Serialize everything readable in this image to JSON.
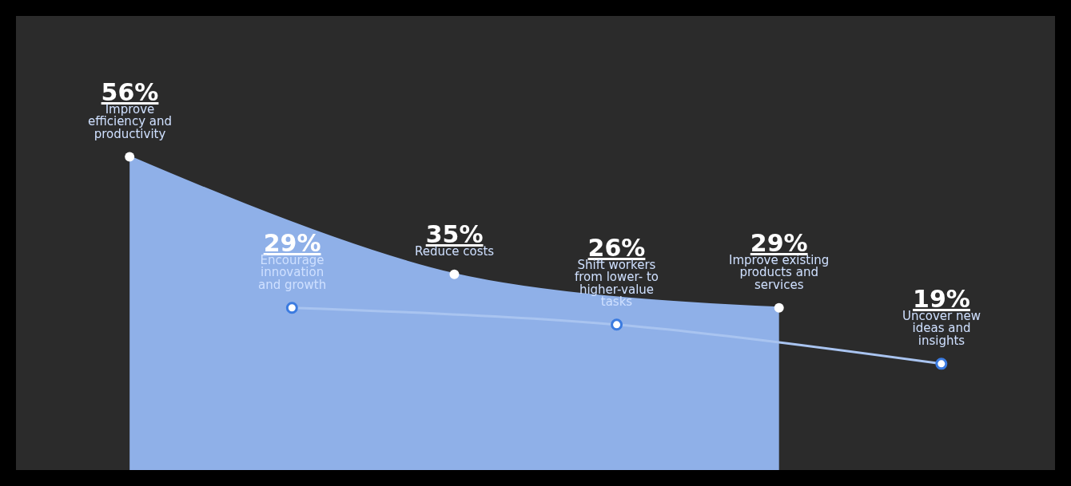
{
  "chart_data": {
    "type": "area",
    "categories": [
      "Improve\nefficiency and\nproductivity",
      "Encourage\ninnovation\nand growth",
      "Reduce costs",
      "Shift workers\nfrom lower- to\nhigher-value\ntasks",
      "Improve existing\nproducts and\nservices",
      "Uncover new\nideas and\ninsights"
    ],
    "series": [
      {
        "color": "#8fb0e8",
        "values": [
          56,
          null,
          35,
          null,
          29,
          null
        ],
        "value_labels": [
          "56%",
          null,
          "35%",
          null,
          "29%",
          null
        ]
      },
      {
        "type": "line",
        "color": "#a9c4f0",
        "values": [
          null,
          29,
          null,
          26,
          null,
          19
        ],
        "value_labels": [
          null,
          "29%",
          null,
          "26%",
          null,
          "19%"
        ]
      }
    ],
    "tick_labels": false,
    "grid": false,
    "marker": "circle"
  }
}
